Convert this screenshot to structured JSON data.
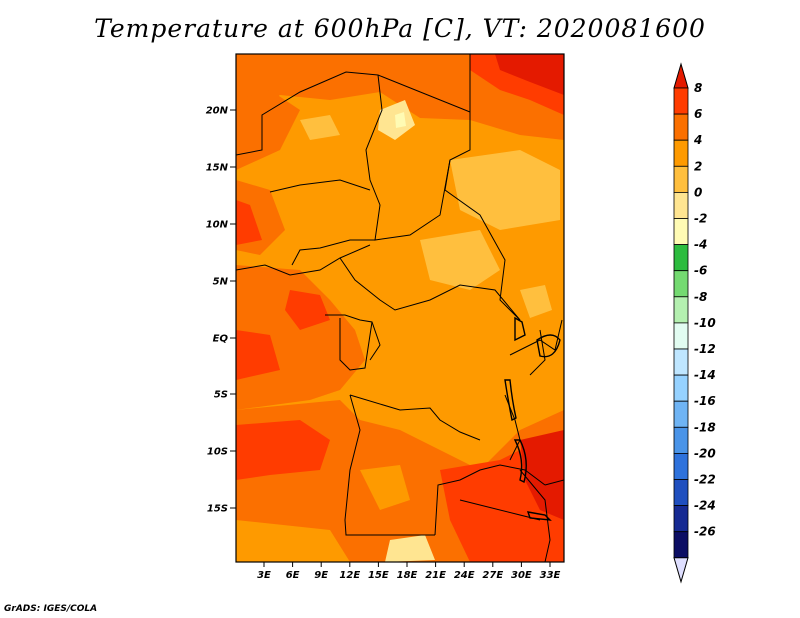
{
  "title": "Temperature at 600hPa [C], VT: 2020081600",
  "credit": "GrADS: IGES/COLA",
  "map": {
    "lat_ticks": [
      "20N",
      "15N",
      "10N",
      "5N",
      "EQ",
      "5S",
      "10S",
      "15S"
    ],
    "lon_ticks": [
      "3E",
      "6E",
      "9E",
      "12E",
      "15E",
      "18E",
      "21E",
      "24E",
      "27E",
      "30E",
      "33E"
    ]
  },
  "colorbar": {
    "levels": [
      "8",
      "6",
      "4",
      "2",
      "0",
      "-2",
      "-4",
      "-6",
      "-8",
      "-10",
      "-12",
      "-14",
      "-16",
      "-18",
      "-20",
      "-22",
      "-24",
      "-26"
    ],
    "colors": [
      "#e41a00",
      "#ff3c00",
      "#fb7000",
      "#fe9a00",
      "#ffbf3e",
      "#ffe591",
      "#fffbb4",
      "#2dbc3f",
      "#74da71",
      "#b4f0b0",
      "#e2fcf1",
      "#bfe6ff",
      "#96d2ff",
      "#6fb4f4",
      "#4a94e8",
      "#2e72dc",
      "#1f4fbf",
      "#162a93",
      "#0c0e64",
      "#dfdfff"
    ]
  }
}
